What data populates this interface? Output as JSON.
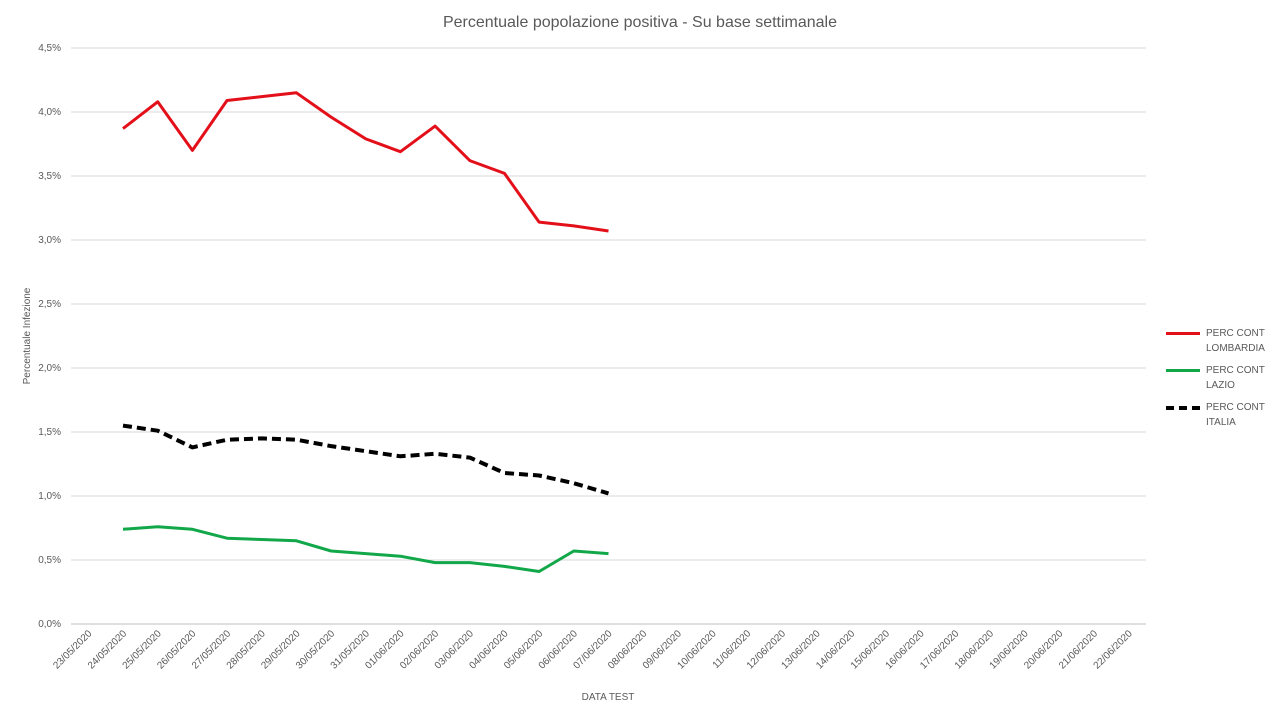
{
  "chart_data": {
    "type": "line",
    "title": "Percentuale popolazione positiva - Su base settimanale",
    "x_label": "DATA TEST",
    "y_label": "Percentuale Infezione",
    "categories": [
      "23/05/2020",
      "24/05/2020",
      "25/05/2020",
      "26/05/2020",
      "27/05/2020",
      "28/05/2020",
      "29/05/2020",
      "30/05/2020",
      "31/05/2020",
      "01/06/2020",
      "02/06/2020",
      "03/06/2020",
      "04/06/2020",
      "05/06/2020",
      "06/06/2020",
      "07/06/2020",
      "08/06/2020",
      "09/06/2020",
      "10/06/2020",
      "11/06/2020",
      "12/06/2020",
      "13/06/2020",
      "14/06/2020",
      "15/06/2020",
      "16/06/2020",
      "17/06/2020",
      "18/06/2020",
      "19/06/2020",
      "20/06/2020",
      "21/06/2020",
      "22/06/2020"
    ],
    "series": [
      {
        "name": "PERC CONT LOMBARDIA",
        "color": "#e3101a",
        "dashed": false,
        "values": [
          null,
          3.87,
          4.08,
          3.7,
          4.09,
          4.12,
          4.15,
          3.96,
          3.79,
          3.69,
          3.89,
          3.62,
          3.52,
          3.14,
          3.11,
          3.07,
          null,
          null,
          null,
          null,
          null,
          null,
          null,
          null,
          null,
          null,
          null,
          null,
          null,
          null,
          null
        ]
      },
      {
        "name": "PERC CONT LAZIO",
        "color": "#12a84a",
        "dashed": false,
        "values": [
          null,
          0.74,
          0.76,
          0.74,
          0.67,
          0.66,
          0.65,
          0.57,
          0.55,
          0.53,
          0.48,
          0.48,
          0.45,
          0.41,
          0.57,
          0.55,
          null,
          null,
          null,
          null,
          null,
          null,
          null,
          null,
          null,
          null,
          null,
          null,
          null,
          null,
          null
        ]
      },
      {
        "name": "PERC CONT ITALIA",
        "color": "#000000",
        "dashed": true,
        "values": [
          null,
          1.55,
          1.51,
          1.38,
          1.44,
          1.45,
          1.44,
          1.39,
          1.35,
          1.31,
          1.33,
          1.3,
          1.18,
          1.16,
          1.1,
          1.02,
          null,
          null,
          null,
          null,
          null,
          null,
          null,
          null,
          null,
          null,
          null,
          null,
          null,
          null,
          null
        ]
      }
    ],
    "ylim": [
      0,
      4.5
    ],
    "yticks": [
      {
        "value": 0,
        "label": "0,0%"
      },
      {
        "value": 0.5,
        "label": "0,5%"
      },
      {
        "value": 1,
        "label": "1,0%"
      },
      {
        "value": 1.5,
        "label": "1,5%"
      },
      {
        "value": 2,
        "label": "2,0%"
      },
      {
        "value": 2.5,
        "label": "2,5%"
      },
      {
        "value": 3,
        "label": "3,0%"
      },
      {
        "value": 3.5,
        "label": "3,5%"
      },
      {
        "value": 4,
        "label": "4,0%"
      },
      {
        "value": 4.5,
        "label": "4,5%"
      }
    ],
    "grid": true,
    "legend": "right"
  }
}
